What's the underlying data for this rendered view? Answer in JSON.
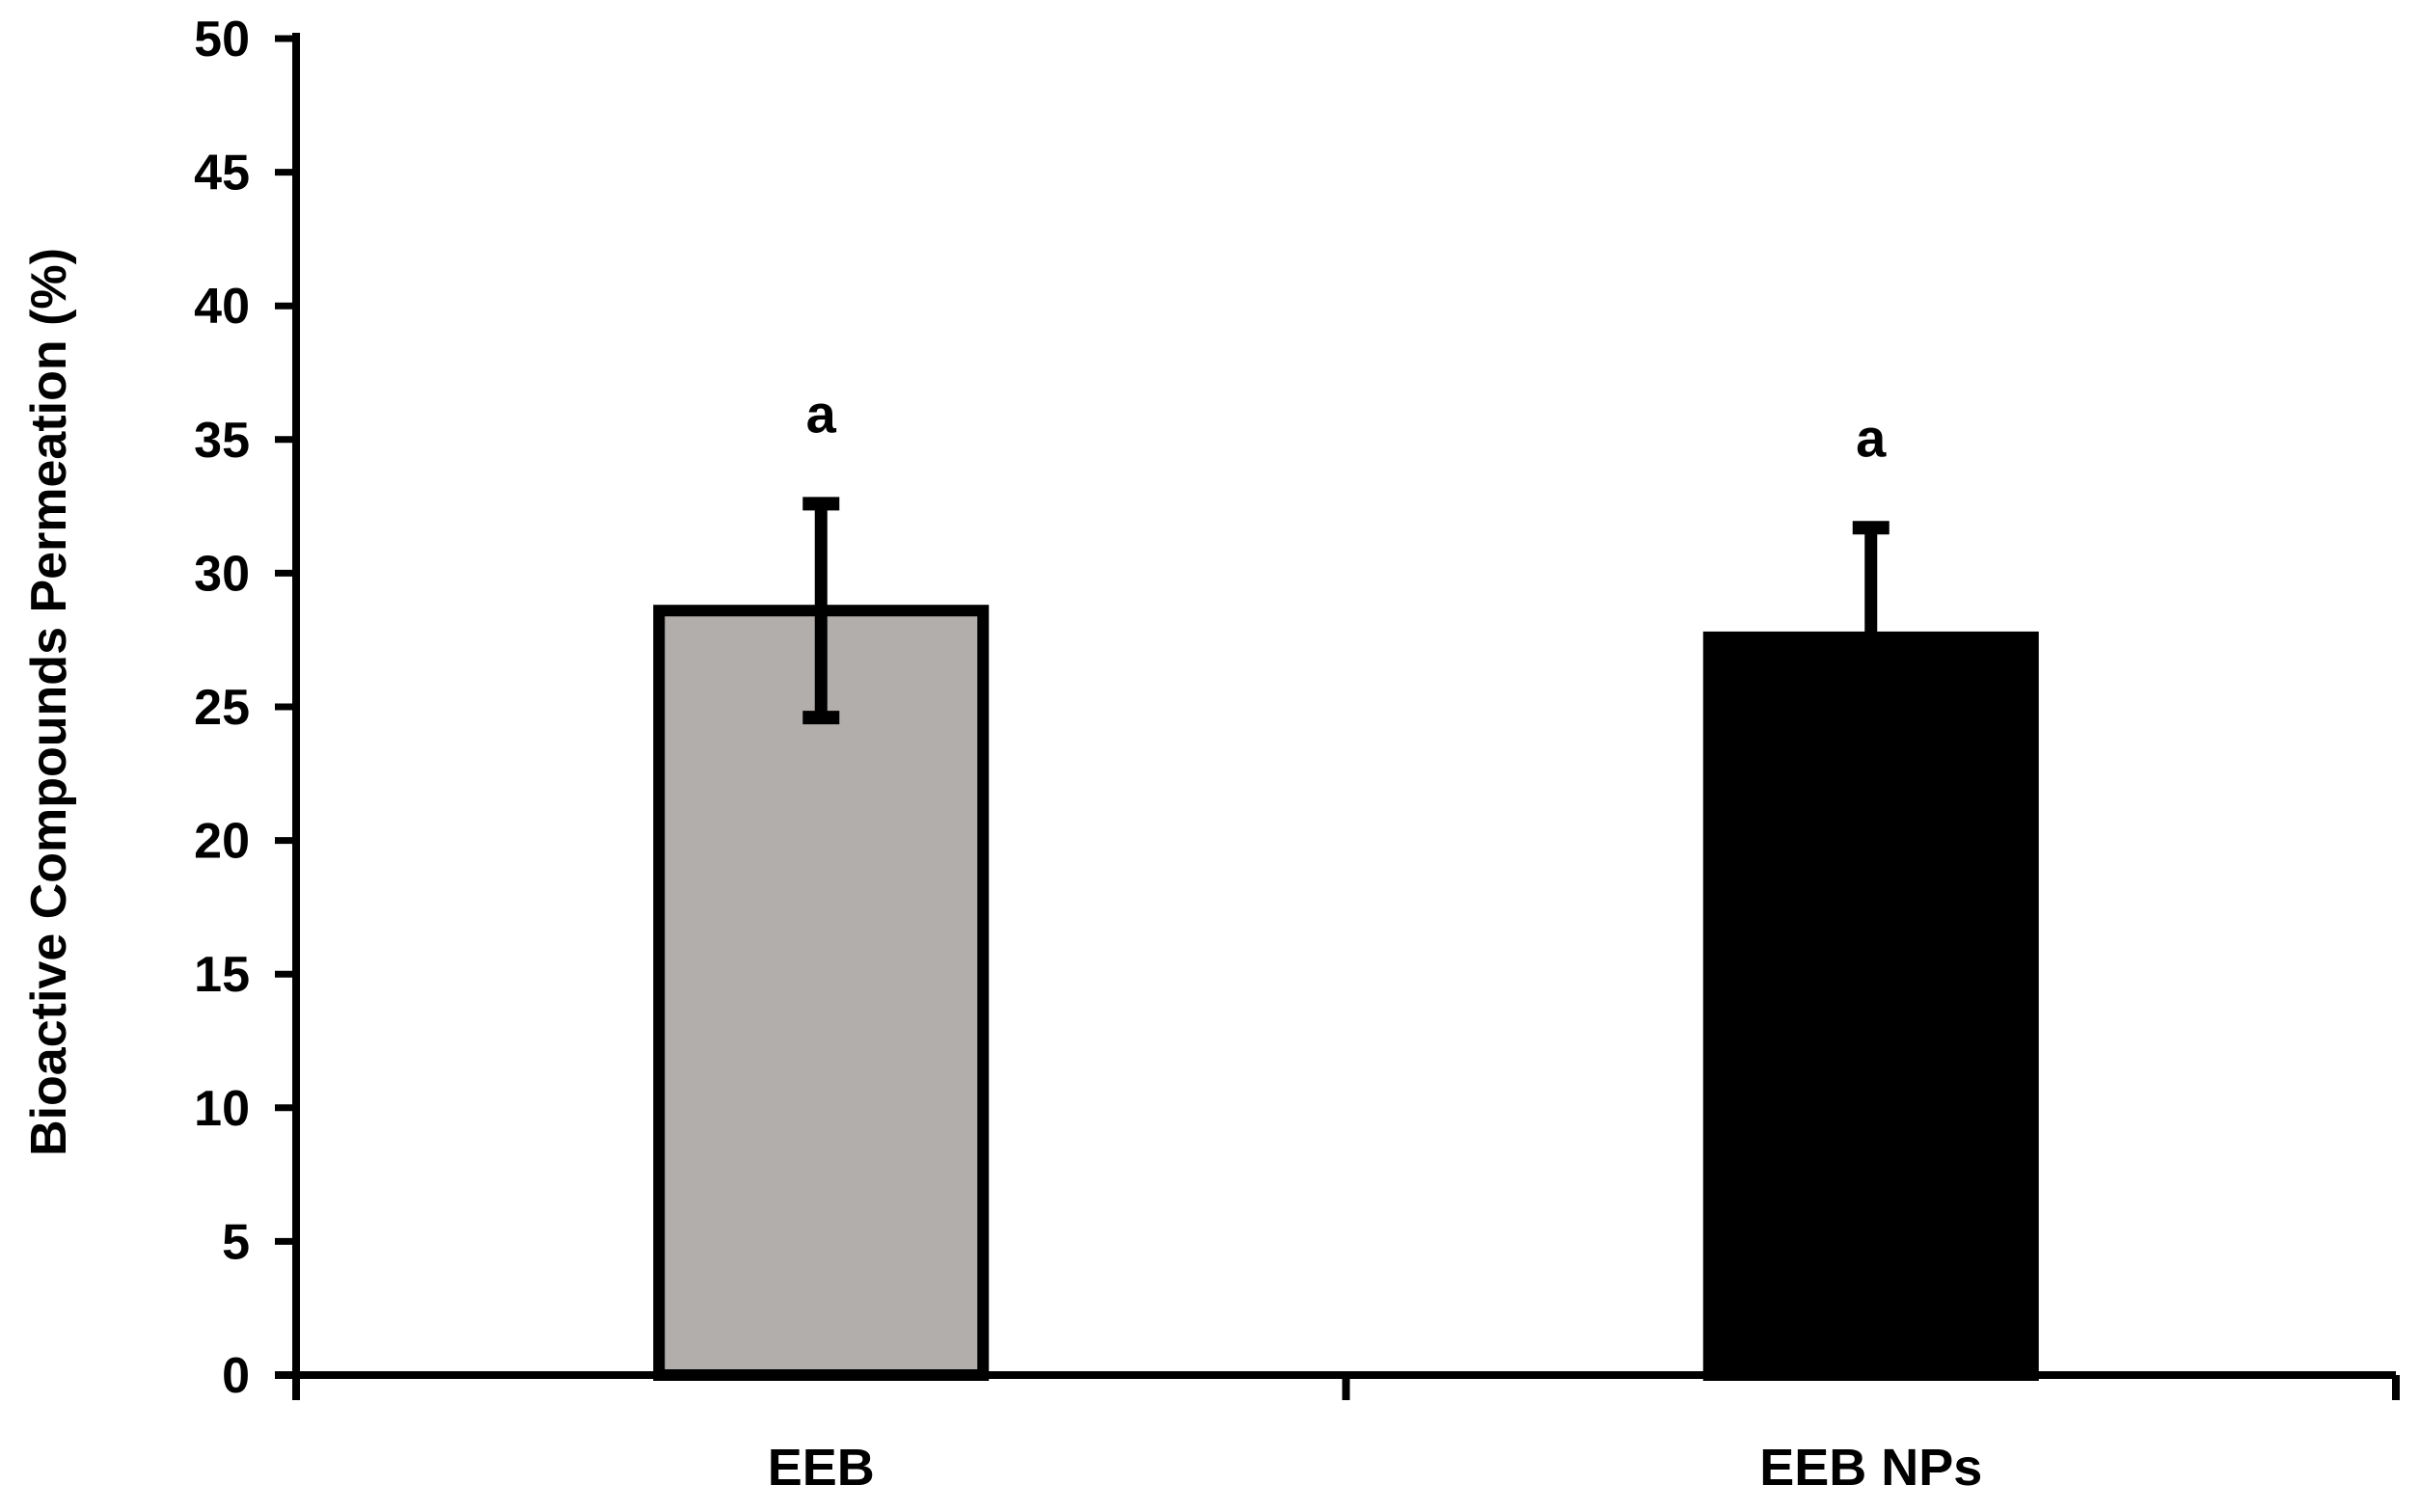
{
  "chart_data": {
    "type": "bar",
    "title": "",
    "xlabel": "",
    "ylabel": "Bioactive Compounds Permeation (%)",
    "ylim": [
      0,
      50
    ],
    "yticks": [
      "0",
      "5",
      "10",
      "15",
      "20",
      "25",
      "30",
      "35",
      "40",
      "45",
      "50"
    ],
    "categories": [
      "EEB",
      "EEB NPs"
    ],
    "values": [
      28.6,
      27.6
    ],
    "errors": [
      4.0,
      4.1
    ],
    "error_style": [
      "both",
      "upper"
    ],
    "annotations": [
      "a",
      "a"
    ],
    "colors": [
      "#b1aeac",
      "#000000"
    ],
    "grid": false,
    "legend": "none"
  }
}
